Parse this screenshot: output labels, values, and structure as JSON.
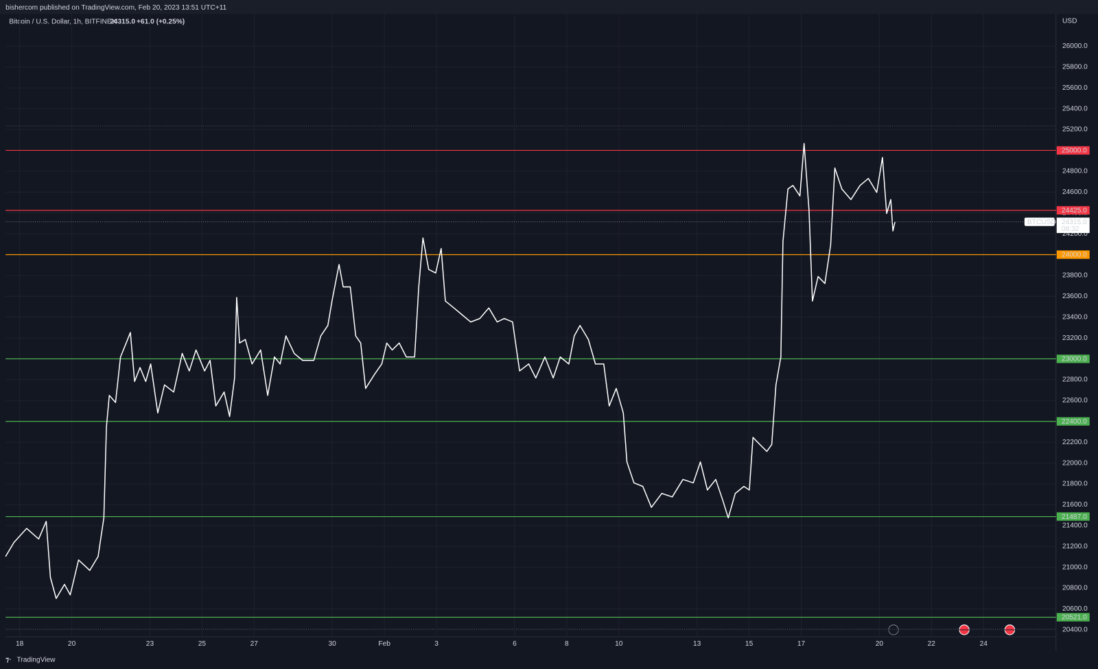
{
  "chart_data": {
    "type": "line",
    "published": "bishercom published on TradingView.com, Feb 20, 2023 13:51 UTC+11",
    "title": "Bitcoin / U.S. Dollar, 1h, BITFINEX",
    "last_price": {
      "value": 24315,
      "label": "24315.0"
    },
    "change": "+61.0 (+0.25%)",
    "unit": "USD",
    "countdown": "08:32",
    "brand": "TradingView",
    "grid": true,
    "xlim": [
      -0.54,
      39.78
    ],
    "ylim": [
      20333,
      26309
    ],
    "xticks": [
      {
        "value": 0,
        "label": "18"
      },
      {
        "value": 2,
        "label": "20"
      },
      {
        "value": 5,
        "label": "23"
      },
      {
        "value": 7,
        "label": "25"
      },
      {
        "value": 9,
        "label": "27"
      },
      {
        "value": 12,
        "label": "30"
      },
      {
        "value": 14,
        "label": "Feb"
      },
      {
        "value": 16,
        "label": "3"
      },
      {
        "value": 19,
        "label": "6"
      },
      {
        "value": 21,
        "label": "8"
      },
      {
        "value": 23,
        "label": "10"
      },
      {
        "value": 26,
        "label": "13"
      },
      {
        "value": 28,
        "label": "15"
      },
      {
        "value": 30,
        "label": "17"
      },
      {
        "value": 33,
        "label": "20"
      },
      {
        "value": 35,
        "label": "22"
      },
      {
        "value": 37,
        "label": "24"
      }
    ],
    "yticks": [
      {
        "value": 20400,
        "label": "20400.0"
      },
      {
        "value": 20600,
        "label": "20600.0"
      },
      {
        "value": 20800,
        "label": "20800.0"
      },
      {
        "value": 21000,
        "label": "21000.0"
      },
      {
        "value": 21200,
        "label": "21200.0"
      },
      {
        "value": 21400,
        "label": "21400.0"
      },
      {
        "value": 21600,
        "label": "21600.0"
      },
      {
        "value": 21800,
        "label": "21800.0"
      },
      {
        "value": 22000,
        "label": "22000.0"
      },
      {
        "value": 22200,
        "label": "22200.0"
      },
      {
        "value": 22400,
        "label": "22400.0"
      },
      {
        "value": 22600,
        "label": "22600.0"
      },
      {
        "value": 22800,
        "label": "22800.0"
      },
      {
        "value": 23000,
        "label": "23000.0"
      },
      {
        "value": 23200,
        "label": "23200.0"
      },
      {
        "value": 23400,
        "label": "23400.0"
      },
      {
        "value": 23600,
        "label": "23600.0"
      },
      {
        "value": 23800,
        "label": "23800.0"
      },
      {
        "value": 24000,
        "label": "24000.0"
      },
      {
        "value": 24200,
        "label": "24200.0"
      },
      {
        "value": 24400,
        "label": "24400.0"
      },
      {
        "value": 24600,
        "label": "24600.0"
      },
      {
        "value": 24800,
        "label": "24800.0"
      },
      {
        "value": 25000,
        "label": "25000.0"
      },
      {
        "value": 25200,
        "label": "25200.0"
      },
      {
        "value": 25400,
        "label": "25400.0"
      },
      {
        "value": 25600,
        "label": "25600.0"
      },
      {
        "value": 25800,
        "label": "25800.0"
      },
      {
        "value": 26000,
        "label": "26000.0"
      }
    ],
    "levels": [
      {
        "value": 25000,
        "label": "25000.0",
        "color": "#f23645"
      },
      {
        "value": 24425,
        "label": "24425.0",
        "color": "#f23645"
      },
      {
        "value": 24000,
        "label": "24000.0",
        "color": "#ff9800"
      },
      {
        "value": 23000,
        "label": "23000.0",
        "color": "#4caf50"
      },
      {
        "value": 22400,
        "label": "22400.0",
        "color": "#4caf50"
      },
      {
        "value": 21487,
        "label": "21487.0",
        "color": "#4caf50"
      },
      {
        "value": 20521,
        "label": "20521.0",
        "color": "#4caf50"
      }
    ],
    "x": [
      -0.54,
      -0.22,
      0.27,
      0.73,
      1.02,
      1.18,
      1.4,
      1.72,
      1.94,
      2.26,
      2.69,
      3.01,
      3.23,
      3.33,
      3.44,
      3.68,
      3.87,
      4.09,
      4.25,
      4.41,
      4.62,
      4.84,
      5.03,
      5.3,
      5.56,
      5.91,
      6.24,
      6.51,
      6.77,
      7.1,
      7.31,
      7.53,
      7.85,
      8.06,
      8.25,
      8.33,
      8.44,
      8.66,
      8.92,
      9.25,
      9.52,
      9.78,
      10.0,
      10.22,
      10.54,
      10.86,
      11.29,
      11.56,
      11.83,
      11.99,
      12.26,
      12.42,
      12.69,
      12.9,
      13.09,
      13.28,
      13.62,
      13.9,
      14.09,
      14.3,
      14.57,
      14.84,
      15.16,
      15.32,
      15.48,
      15.7,
      15.97,
      16.18,
      16.34,
      16.67,
      16.99,
      17.31,
      17.66,
      18.01,
      18.33,
      18.6,
      18.92,
      19.19,
      19.54,
      19.81,
      20.16,
      20.48,
      20.75,
      21.08,
      21.29,
      21.51,
      21.83,
      22.1,
      22.42,
      22.63,
      22.9,
      23.17,
      23.31,
      23.58,
      23.92,
      24.25,
      24.65,
      25.05,
      25.46,
      25.86,
      26.13,
      26.4,
      26.72,
      26.99,
      27.2,
      27.47,
      27.8,
      28.01,
      28.15,
      28.41,
      28.68,
      28.87,
      29.03,
      29.22,
      29.3,
      29.49,
      29.68,
      29.95,
      30.11,
      30.3,
      30.43,
      30.65,
      30.91,
      31.13,
      31.29,
      31.56,
      31.91,
      32.26,
      32.58,
      32.9,
      33.12,
      33.28,
      33.44,
      33.52,
      33.6
    ],
    "series": [
      {
        "name": "BTCUSD",
        "color": "#ffffff",
        "values": [
          21104,
          21238,
          21373,
          21272,
          21440,
          20903,
          20701,
          20836,
          20735,
          21070,
          20970,
          21104,
          21474,
          22347,
          22649,
          22582,
          23018,
          23152,
          23253,
          22783,
          22917,
          22783,
          22951,
          22481,
          22750,
          22682,
          23052,
          22884,
          23085,
          22884,
          22985,
          22548,
          22682,
          22447,
          22817,
          23589,
          23152,
          23186,
          22951,
          23085,
          22649,
          23018,
          22951,
          23220,
          23052,
          22985,
          22985,
          23220,
          23320,
          23555,
          23905,
          23690,
          23690,
          23220,
          23152,
          22716,
          22851,
          22951,
          23152,
          23085,
          23152,
          23018,
          23018,
          23690,
          24160,
          23858,
          23824,
          24059,
          23555,
          23488,
          23421,
          23354,
          23387,
          23488,
          23354,
          23387,
          23354,
          22884,
          22951,
          22817,
          23018,
          22817,
          23018,
          22951,
          23220,
          23320,
          23186,
          22951,
          22951,
          22548,
          22716,
          22481,
          22011,
          21810,
          21776,
          21575,
          21709,
          21675,
          21843,
          21810,
          22011,
          21742,
          21843,
          21642,
          21474,
          21709,
          21776,
          21742,
          22246,
          22179,
          22112,
          22179,
          22750,
          23018,
          24126,
          24630,
          24664,
          24563,
          25067,
          24428,
          23555,
          23790,
          23723,
          24093,
          24831,
          24630,
          24529,
          24664,
          24731,
          24597,
          24932,
          24395,
          24529,
          24227,
          24315
        ]
      }
    ]
  }
}
